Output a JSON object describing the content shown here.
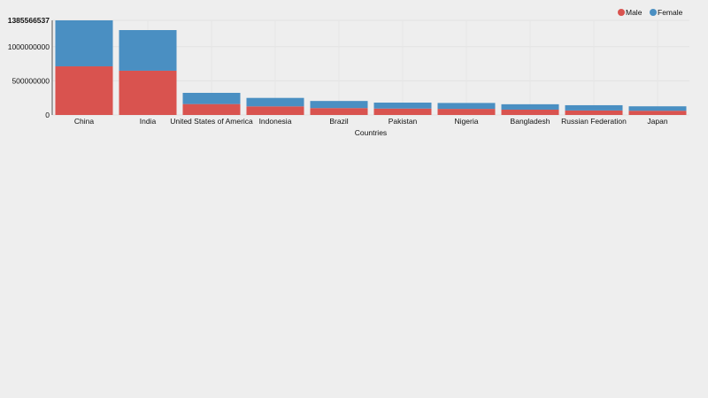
{
  "chart_data": {
    "type": "bar",
    "stacked": true,
    "xlabel": "Countries",
    "ylabel": "",
    "categories": [
      "China",
      "India",
      "United States of America",
      "Indonesia",
      "Brazil",
      "Pakistan",
      "Nigeria",
      "Bangladesh",
      "Russian Federation",
      "Japan"
    ],
    "series": [
      {
        "name": "Male",
        "color": "#d9534f",
        "values": [
          712000000,
          648000000,
          160000000,
          126000000,
          101000000,
          94000000,
          89000000,
          78000000,
          66000000,
          62000000
        ]
      },
      {
        "name": "Female",
        "color": "#4a8fc2",
        "values": [
          673566537,
          595000000,
          164000000,
          124000000,
          104000000,
          87000000,
          87000000,
          79000000,
          77000000,
          65000000
        ]
      }
    ],
    "ylim": [
      0,
      1385566537
    ],
    "yticks": [
      "0",
      "500000000",
      "1000000000",
      "1385566537"
    ],
    "ytick_values": [
      0,
      500000000,
      1000000000,
      1385566537
    ],
    "grid": true,
    "legend": "top-right"
  }
}
